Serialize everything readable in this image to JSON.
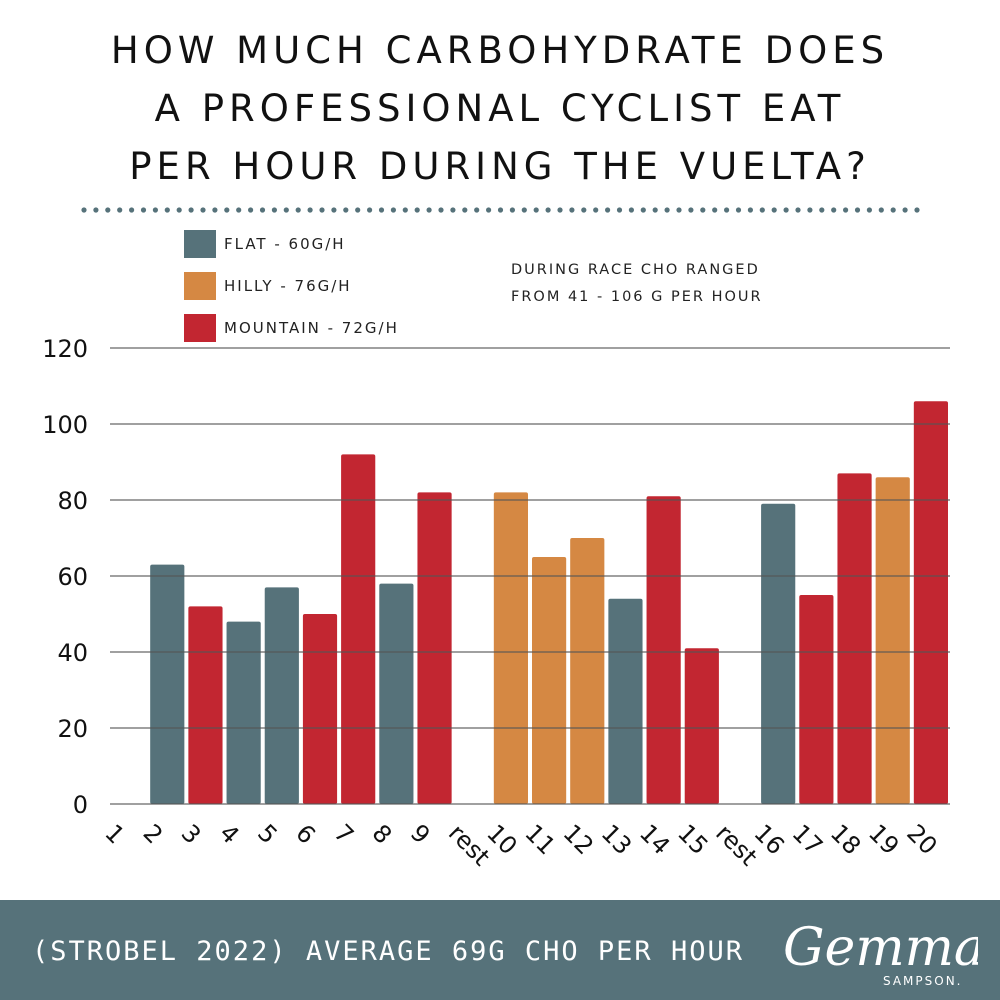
{
  "title_lines": [
    "HOW MUCH CARBOHYDRATE  DOES",
    "A PROFESSIONAL CYCLIST EAT",
    "PER HOUR DURING THE VUELTA?"
  ],
  "note_lines": [
    "DURING RACE CHO RANGED",
    "FROM 41 - 106 G PER HOUR"
  ],
  "footer_text": "(STROBEL 2022) AVERAGE 69G CHO PER HOUR",
  "logo": {
    "script": "Gemma",
    "name": "SAMPSON."
  },
  "colors": {
    "flat": "#56727a",
    "hilly": "#d58843",
    "mountain": "#c22631",
    "footer": "#56727a"
  },
  "chart_data": {
    "type": "bar",
    "categories": [
      "1",
      "2",
      "3",
      "4",
      "5",
      "6",
      "7",
      "8",
      "9",
      "rest",
      "10",
      "11",
      "12",
      "13",
      "14",
      "15",
      "rest",
      "16",
      "17",
      "18",
      "19",
      "20"
    ],
    "values": [
      null,
      63,
      52,
      48,
      57,
      50,
      92,
      58,
      82,
      null,
      82,
      65,
      70,
      54,
      81,
      41,
      null,
      79,
      55,
      87,
      86,
      106
    ],
    "stage_type": [
      null,
      "flat",
      "mountain",
      "flat",
      "flat",
      "mountain",
      "mountain",
      "flat",
      "mountain",
      null,
      "hilly",
      "hilly",
      "hilly",
      "flat",
      "mountain",
      "mountain",
      null,
      "flat",
      "mountain",
      "mountain",
      "hilly",
      "mountain"
    ],
    "legend": [
      {
        "key": "flat",
        "label": "FLAT  - 60G/H"
      },
      {
        "key": "hilly",
        "label": "HILLY - 76G/H"
      },
      {
        "key": "mountain",
        "label": "MOUNTAIN - 72G/H"
      }
    ],
    "legend_position": "top-left",
    "yticks": [
      0,
      20,
      40,
      60,
      80,
      100,
      120
    ],
    "ylim": [
      0,
      120
    ],
    "grid": true
  }
}
